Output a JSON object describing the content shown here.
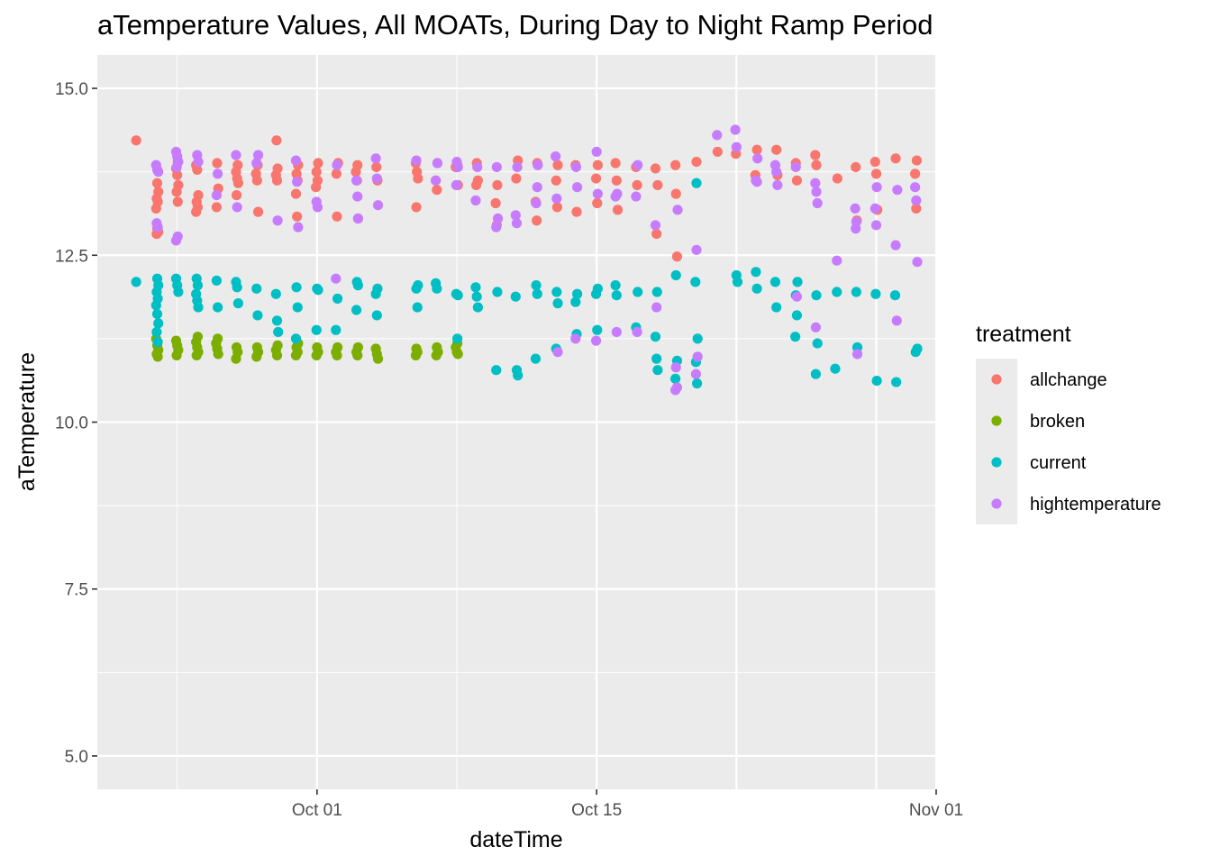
{
  "chart_data": {
    "type": "scatter",
    "title": "aTemperature Values, All MOATs, During Day to Night Ramp Period",
    "xlabel": "dateTime",
    "ylabel": "aTemperature",
    "x_type": "date",
    "xlim": [
      "2023-09-20",
      "2023-11-01"
    ],
    "ylim": [
      4.5,
      15.5
    ],
    "x_ticks": [
      {
        "value": "2023-10-01",
        "label": "Oct 01"
      },
      {
        "value": "2023-10-15",
        "label": "Oct 15"
      },
      {
        "value": "2023-11-01",
        "label": "Nov 01"
      }
    ],
    "y_ticks": [
      {
        "value": 5.0,
        "label": "5.0"
      },
      {
        "value": 7.5,
        "label": "7.5"
      },
      {
        "value": 10.0,
        "label": "10.0"
      },
      {
        "value": 12.5,
        "label": "12.5"
      },
      {
        "value": 15.0,
        "label": "15.0"
      }
    ],
    "grid": true,
    "legend": {
      "title": "treatment",
      "position": "right"
    },
    "series": [
      {
        "name": "allchange",
        "color": "#F8766D",
        "x": [
          "2023-09-22",
          "2023-09-23",
          "2023-09-23",
          "2023-09-23",
          "2023-09-23",
          "2023-09-23",
          "2023-09-23",
          "2023-09-23",
          "2023-09-23",
          "2023-09-24",
          "2023-09-24",
          "2023-09-24",
          "2023-09-24",
          "2023-09-24",
          "2023-09-24",
          "2023-09-25",
          "2023-09-25",
          "2023-09-25",
          "2023-09-25",
          "2023-09-25",
          "2023-09-25",
          "2023-09-26",
          "2023-09-26",
          "2023-09-26",
          "2023-09-27",
          "2023-09-27",
          "2023-09-27",
          "2023-09-27",
          "2023-09-27",
          "2023-09-28",
          "2023-09-28",
          "2023-09-28",
          "2023-09-28",
          "2023-09-29",
          "2023-09-29",
          "2023-09-29",
          "2023-09-29",
          "2023-09-30",
          "2023-09-30",
          "2023-09-30",
          "2023-09-30",
          "2023-09-30",
          "2023-10-01",
          "2023-10-01",
          "2023-10-01",
          "2023-10-01",
          "2023-10-02",
          "2023-10-02",
          "2023-10-02",
          "2023-10-03",
          "2023-10-03",
          "2023-10-03",
          "2023-10-03",
          "2023-10-04",
          "2023-10-04",
          "2023-10-06",
          "2023-10-06",
          "2023-10-06",
          "2023-10-06",
          "2023-10-07",
          "2023-10-07",
          "2023-10-07",
          "2023-10-08",
          "2023-10-08",
          "2023-10-08",
          "2023-10-08",
          "2023-10-09",
          "2023-10-09",
          "2023-10-09",
          "2023-10-10",
          "2023-10-10",
          "2023-10-10",
          "2023-10-11",
          "2023-10-11",
          "2023-10-12",
          "2023-10-12",
          "2023-10-12",
          "2023-10-13",
          "2023-10-13",
          "2023-10-13",
          "2023-10-14",
          "2023-10-14",
          "2023-10-15",
          "2023-10-15",
          "2023-10-15",
          "2023-10-16",
          "2023-10-16",
          "2023-10-16",
          "2023-10-17",
          "2023-10-17",
          "2023-10-18",
          "2023-10-18",
          "2023-10-18",
          "2023-10-19",
          "2023-10-19",
          "2023-10-19",
          "2023-10-20",
          "2023-10-21",
          "2023-10-22",
          "2023-10-23",
          "2023-10-23",
          "2023-10-24",
          "2023-10-24",
          "2023-10-25",
          "2023-10-25",
          "2023-10-26",
          "2023-10-26",
          "2023-10-27",
          "2023-10-28",
          "2023-10-28",
          "2023-10-29",
          "2023-10-29",
          "2023-10-29",
          "2023-10-30",
          "2023-10-31",
          "2023-10-31",
          "2023-10-31"
        ],
        "y": [
          14.22,
          13.58,
          13.45,
          13.35,
          13.3,
          13.2,
          12.9,
          12.85,
          12.82,
          13.9,
          13.8,
          13.7,
          13.55,
          13.45,
          13.3,
          13.85,
          13.78,
          13.4,
          13.3,
          13.22,
          13.15,
          13.88,
          13.5,
          13.22,
          13.85,
          13.75,
          13.65,
          13.58,
          13.4,
          13.85,
          13.72,
          13.62,
          13.15,
          14.22,
          13.8,
          13.7,
          13.62,
          13.85,
          13.72,
          13.62,
          13.42,
          13.08,
          13.88,
          13.75,
          13.62,
          13.52,
          13.08,
          13.88,
          13.72,
          13.85,
          13.75,
          13.62,
          13.05,
          13.82,
          13.62,
          13.88,
          13.75,
          13.65,
          13.22,
          13.88,
          13.62,
          13.48,
          13.55,
          13.82,
          13.85,
          13.82,
          13.88,
          13.62,
          13.55,
          13.55,
          13.28,
          12.95,
          13.92,
          13.65,
          13.88,
          13.3,
          13.02,
          13.85,
          13.62,
          13.22,
          13.85,
          13.15,
          13.85,
          13.65,
          13.28,
          13.88,
          13.62,
          13.18,
          13.82,
          13.55,
          13.8,
          12.82,
          13.55,
          13.42,
          12.48,
          13.85,
          13.9,
          14.05,
          14.02,
          14.08,
          13.7,
          14.08,
          13.7,
          13.88,
          13.62,
          14.0,
          13.85,
          13.65,
          13.82,
          13.02,
          13.9,
          13.72,
          13.18,
          13.95,
          13.92,
          13.72,
          13.2
        ]
      },
      {
        "name": "broken",
        "color": "#7CAE00",
        "x": [
          "2023-09-23",
          "2023-09-23",
          "2023-09-23",
          "2023-09-23",
          "2023-09-23",
          "2023-09-24",
          "2023-09-24",
          "2023-09-24",
          "2023-09-24",
          "2023-09-25",
          "2023-09-25",
          "2023-09-25",
          "2023-09-25",
          "2023-09-25",
          "2023-09-26",
          "2023-09-26",
          "2023-09-26",
          "2023-09-26",
          "2023-09-27",
          "2023-09-27",
          "2023-09-27",
          "2023-09-28",
          "2023-09-28",
          "2023-09-28",
          "2023-09-29",
          "2023-09-29",
          "2023-09-29",
          "2023-09-30",
          "2023-09-30",
          "2023-09-30",
          "2023-09-30",
          "2023-10-01",
          "2023-10-01",
          "2023-10-01",
          "2023-10-02",
          "2023-10-02",
          "2023-10-02",
          "2023-10-03",
          "2023-10-03",
          "2023-10-03",
          "2023-10-04",
          "2023-10-04",
          "2023-10-04",
          "2023-10-06",
          "2023-10-06",
          "2023-10-06",
          "2023-10-07",
          "2023-10-07",
          "2023-10-07",
          "2023-10-08",
          "2023-10-08",
          "2023-10-08",
          "2023-10-08"
        ],
        "y": [
          11.25,
          11.15,
          11.08,
          11.02,
          10.98,
          11.22,
          11.15,
          11.08,
          11.0,
          11.28,
          11.2,
          11.12,
          11.05,
          11.0,
          11.25,
          11.18,
          11.1,
          11.02,
          11.12,
          11.05,
          10.95,
          11.12,
          11.05,
          10.98,
          11.15,
          11.08,
          11.0,
          11.18,
          11.12,
          11.05,
          11.0,
          11.12,
          11.05,
          11.0,
          11.12,
          11.05,
          11.0,
          11.12,
          11.05,
          11.0,
          11.1,
          11.02,
          10.95,
          11.1,
          11.05,
          11.0,
          11.12,
          11.05,
          11.0,
          11.18,
          11.12,
          11.05,
          11.02
        ]
      },
      {
        "name": "current",
        "color": "#00BFC4",
        "x": [
          "2023-09-22",
          "2023-09-23",
          "2023-09-23",
          "2023-09-23",
          "2023-09-23",
          "2023-09-23",
          "2023-09-23",
          "2023-09-23",
          "2023-09-23",
          "2023-09-23",
          "2023-09-24",
          "2023-09-24",
          "2023-09-24",
          "2023-09-25",
          "2023-09-25",
          "2023-09-25",
          "2023-09-25",
          "2023-09-25",
          "2023-09-26",
          "2023-09-26",
          "2023-09-27",
          "2023-09-27",
          "2023-09-27",
          "2023-09-28",
          "2023-09-28",
          "2023-09-29",
          "2023-09-29",
          "2023-09-29",
          "2023-09-30",
          "2023-09-30",
          "2023-09-30",
          "2023-10-01",
          "2023-10-01",
          "2023-10-01",
          "2023-10-02",
          "2023-10-02",
          "2023-10-03",
          "2023-10-03",
          "2023-10-03",
          "2023-10-04",
          "2023-10-04",
          "2023-10-04",
          "2023-10-06",
          "2023-10-06",
          "2023-10-06",
          "2023-10-07",
          "2023-10-07",
          "2023-10-08",
          "2023-10-08",
          "2023-10-08",
          "2023-10-09",
          "2023-10-09",
          "2023-10-09",
          "2023-10-10",
          "2023-10-10",
          "2023-10-11",
          "2023-10-11",
          "2023-10-11",
          "2023-10-12",
          "2023-10-12",
          "2023-10-12",
          "2023-10-13",
          "2023-10-13",
          "2023-10-13",
          "2023-10-14",
          "2023-10-14",
          "2023-10-14",
          "2023-10-15",
          "2023-10-15",
          "2023-10-15",
          "2023-10-16",
          "2023-10-16",
          "2023-10-17",
          "2023-10-17",
          "2023-10-18",
          "2023-10-18",
          "2023-10-18",
          "2023-10-18",
          "2023-10-19",
          "2023-10-19",
          "2023-10-19",
          "2023-10-20",
          "2023-10-20",
          "2023-10-20",
          "2023-10-20",
          "2023-10-20",
          "2023-10-22",
          "2023-10-22",
          "2023-10-23",
          "2023-10-23",
          "2023-10-24",
          "2023-10-24",
          "2023-10-25",
          "2023-10-25",
          "2023-10-25",
          "2023-10-25",
          "2023-10-26",
          "2023-10-26",
          "2023-10-26",
          "2023-10-27",
          "2023-10-27",
          "2023-10-28",
          "2023-10-28",
          "2023-10-29",
          "2023-10-29",
          "2023-10-30",
          "2023-10-30",
          "2023-10-31",
          "2023-10-31"
        ],
        "y": [
          12.1,
          12.15,
          12.05,
          11.95,
          11.85,
          11.75,
          11.62,
          11.48,
          11.35,
          11.2,
          12.15,
          12.05,
          11.95,
          12.15,
          12.05,
          11.92,
          11.82,
          11.72,
          12.12,
          11.72,
          12.1,
          12.02,
          11.78,
          12.0,
          11.6,
          11.92,
          11.52,
          11.35,
          12.02,
          11.72,
          11.25,
          12.0,
          11.98,
          11.38,
          11.85,
          11.38,
          12.1,
          12.05,
          11.68,
          12.0,
          11.92,
          11.6,
          12.05,
          12.0,
          11.72,
          12.08,
          12.0,
          11.9,
          11.92,
          11.25,
          12.02,
          11.88,
          11.72,
          10.78,
          11.95,
          11.88,
          10.78,
          10.7,
          12.05,
          11.92,
          10.95,
          11.95,
          11.78,
          11.1,
          11.92,
          11.8,
          11.32,
          12.0,
          11.92,
          11.38,
          12.05,
          11.9,
          11.95,
          11.42,
          11.95,
          11.28,
          10.95,
          10.78,
          12.2,
          10.92,
          10.65,
          13.58,
          11.25,
          10.9,
          10.58,
          12.1,
          12.2,
          12.1,
          12.25,
          12.0,
          12.1,
          11.72,
          12.1,
          11.9,
          11.6,
          11.28,
          11.9,
          11.18,
          10.72,
          11.95,
          10.8,
          11.95,
          11.12,
          11.92,
          10.62,
          11.9,
          10.6,
          11.1,
          11.05
        ]
      },
      {
        "name": "hightemperature",
        "color": "#C77CFF",
        "x": [
          "2023-09-23",
          "2023-09-23",
          "2023-09-23",
          "2023-09-23",
          "2023-09-23",
          "2023-09-24",
          "2023-09-24",
          "2023-09-24",
          "2023-09-24",
          "2023-09-24",
          "2023-09-24",
          "2023-09-25",
          "2023-09-25",
          "2023-09-26",
          "2023-09-26",
          "2023-09-27",
          "2023-09-27",
          "2023-09-28",
          "2023-09-28",
          "2023-09-29",
          "2023-09-30",
          "2023-09-30",
          "2023-09-30",
          "2023-10-01",
          "2023-10-01",
          "2023-10-02",
          "2023-10-02",
          "2023-10-03",
          "2023-10-03",
          "2023-10-03",
          "2023-10-04",
          "2023-10-04",
          "2023-10-04",
          "2023-10-06",
          "2023-10-07",
          "2023-10-07",
          "2023-10-08",
          "2023-10-08",
          "2023-10-08",
          "2023-10-09",
          "2023-10-09",
          "2023-10-10",
          "2023-10-10",
          "2023-10-10",
          "2023-10-11",
          "2023-10-11",
          "2023-10-11",
          "2023-10-12",
          "2023-10-12",
          "2023-10-12",
          "2023-10-13",
          "2023-10-13",
          "2023-10-13",
          "2023-10-14",
          "2023-10-14",
          "2023-10-14",
          "2023-10-15",
          "2023-10-15",
          "2023-10-15",
          "2023-10-16",
          "2023-10-16",
          "2023-10-16",
          "2023-10-17",
          "2023-10-17",
          "2023-10-17",
          "2023-10-18",
          "2023-10-18",
          "2023-10-19",
          "2023-10-19",
          "2023-10-19",
          "2023-10-19",
          "2023-10-20",
          "2023-10-20",
          "2023-10-20",
          "2023-10-21",
          "2023-10-22",
          "2023-10-22",
          "2023-10-23",
          "2023-10-23",
          "2023-10-23",
          "2023-10-24",
          "2023-10-24",
          "2023-10-24",
          "2023-10-25",
          "2023-10-25",
          "2023-10-26",
          "2023-10-26",
          "2023-10-26",
          "2023-10-26",
          "2023-10-27",
          "2023-10-28",
          "2023-10-28",
          "2023-10-28",
          "2023-10-28",
          "2023-10-29",
          "2023-10-29",
          "2023-10-29",
          "2023-10-30",
          "2023-10-30",
          "2023-10-30",
          "2023-10-31",
          "2023-10-31",
          "2023-10-31"
        ],
        "y": [
          13.85,
          13.78,
          13.75,
          12.98,
          12.92,
          14.05,
          13.98,
          13.9,
          13.82,
          12.78,
          12.72,
          14.0,
          13.9,
          13.4,
          13.72,
          14.0,
          13.22,
          14.0,
          13.88,
          13.02,
          13.92,
          13.6,
          12.92,
          13.3,
          13.22,
          12.15,
          13.85,
          13.05,
          13.62,
          13.38,
          13.95,
          13.65,
          13.25,
          13.92,
          13.88,
          13.62,
          13.9,
          13.82,
          13.55,
          13.82,
          13.32,
          13.82,
          13.05,
          12.92,
          13.82,
          13.1,
          12.98,
          13.85,
          13.28,
          13.52,
          13.98,
          13.35,
          11.05,
          13.82,
          13.52,
          11.25,
          14.05,
          13.42,
          11.22,
          13.42,
          13.38,
          11.35,
          13.85,
          13.38,
          11.35,
          12.95,
          11.72,
          13.18,
          10.82,
          10.52,
          10.48,
          12.58,
          10.98,
          10.72,
          14.3,
          14.38,
          14.12,
          13.95,
          13.62,
          13.6,
          13.85,
          13.75,
          13.55,
          13.82,
          11.88,
          13.58,
          13.45,
          13.28,
          11.42,
          12.42,
          13.2,
          13.0,
          11.02,
          12.9,
          13.52,
          13.2,
          12.95,
          13.48,
          12.65,
          11.52,
          13.52,
          13.32,
          12.4
        ]
      }
    ]
  }
}
